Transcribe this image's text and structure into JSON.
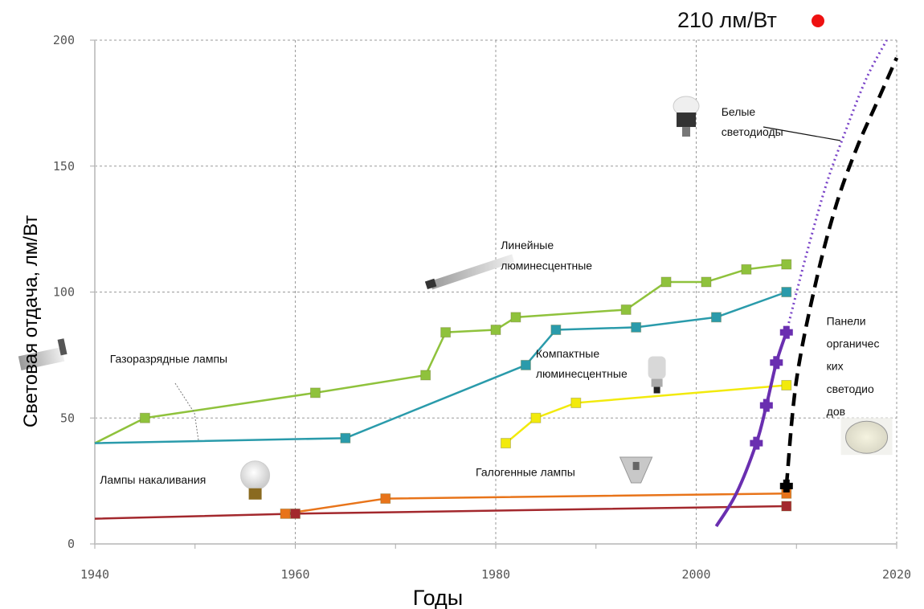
{
  "chart_data": {
    "type": "line",
    "title": "",
    "top_annotation": "210 лм/Вт",
    "top_annotation_marker_color": "#ee1111",
    "xlabel": "Годы",
    "ylabel": "Световая отдача, лм/Вт",
    "xlim": [
      1940,
      2020
    ],
    "ylim": [
      0,
      200
    ],
    "x_ticks": [
      1940,
      1960,
      1980,
      2000,
      2020
    ],
    "x_tick_labels": [
      "1940",
      "1960",
      "1980",
      "2000",
      "2020"
    ],
    "y_ticks": [
      0,
      50,
      100,
      150,
      200
    ],
    "y_tick_labels": [
      "0",
      "50",
      "100",
      "150",
      "200"
    ],
    "grid": true,
    "legend": "none (inline annotations)",
    "series": [
      {
        "name": "Линейные люминесцентные",
        "color": "#8fc23c",
        "marker": "square",
        "style": "solid",
        "x": [
          1940,
          1945,
          1962,
          1973,
          1975,
          1980,
          1982,
          1993,
          1997,
          2001,
          2005,
          2009
        ],
        "y": [
          40,
          50,
          60,
          67,
          84,
          85,
          90,
          93,
          104,
          104,
          109,
          111
        ]
      },
      {
        "name": "Компактные люминесцентные",
        "color": "#2a9bab",
        "marker": "square",
        "style": "solid",
        "x": [
          1940,
          1965,
          1983,
          1986,
          1994,
          2002,
          2009
        ],
        "y": [
          40,
          42,
          71,
          85,
          86,
          90,
          100
        ]
      },
      {
        "name": "Галогенные лампы",
        "color": "#f2ea0c",
        "marker": "square",
        "style": "solid",
        "x": [
          1981,
          1984,
          1988,
          2009
        ],
        "y": [
          40,
          50,
          56,
          63
        ]
      },
      {
        "name": "Галогенные лампы (низ)",
        "color": "#e8741a",
        "marker": "square",
        "style": "solid",
        "x": [
          1959,
          1969,
          2009
        ],
        "y": [
          12,
          18,
          20
        ]
      },
      {
        "name": "Лампы накаливания",
        "color": "#a3282d",
        "marker": "square",
        "style": "solid",
        "x": [
          1940,
          1960,
          2009
        ],
        "y": [
          10,
          12,
          15
        ]
      },
      {
        "name": "Белые светодиоды",
        "color": "#6a2fb0",
        "marker": "plus",
        "style": "solid",
        "x": [
          2002,
          2004,
          2006,
          2007,
          2008,
          2009
        ],
        "y": [
          7,
          20,
          40,
          55,
          72,
          84
        ]
      },
      {
        "name": "Белые светодиоды (прогноз)",
        "color": "#7a44c8",
        "marker": "none",
        "style": "dotted",
        "x": [
          2009,
          2011,
          2013,
          2015,
          2017,
          2019
        ],
        "y": [
          84,
          115,
          143,
          165,
          185,
          200
        ]
      },
      {
        "name": "Панели органических светодиодов",
        "color": "#000000",
        "marker": "plus",
        "style": "dashed",
        "x": [
          2009,
          2010,
          2012,
          2014,
          2016,
          2018,
          2020
        ],
        "y": [
          23,
          65,
          105,
          135,
          157,
          175,
          193
        ]
      }
    ],
    "annotations": [
      {
        "text": "Газоразрядные лампы",
        "x": 1941.5,
        "y": 72
      },
      {
        "text": "Линейные",
        "x": 1980.5,
        "y": 117
      },
      {
        "text": "люминесцентные",
        "x": 1980.5,
        "y": 109
      },
      {
        "text": "Компактные",
        "x": 1984,
        "y": 74
      },
      {
        "text": "люминесцентные",
        "x": 1984,
        "y": 66
      },
      {
        "text": "Галогенные лампы",
        "x": 1978,
        "y": 27
      },
      {
        "text": "Лампы накаливания",
        "x": 1940.5,
        "y": 24
      },
      {
        "text": "Белые",
        "x": 2002.5,
        "y": 170
      },
      {
        "text": "светодиоды",
        "x": 2002.5,
        "y": 162
      },
      {
        "text": "Панели",
        "x": 2013,
        "y": 87
      },
      {
        "text": "органичес",
        "x": 2013,
        "y": 78
      },
      {
        "text": "ких",
        "x": 2013,
        "y": 69
      },
      {
        "text": "светодио",
        "x": 2013,
        "y": 60
      },
      {
        "text": "дов",
        "x": 2013,
        "y": 51
      }
    ],
    "icons": [
      {
        "name": "linear-fluorescent-tube-icon",
        "x": 1974,
        "y": 108
      },
      {
        "name": "discharge-lamp-icon",
        "x": 1932.5,
        "y": 72
      },
      {
        "name": "compact-fluorescent-lamp-icon",
        "x": 1996,
        "y": 70
      },
      {
        "name": "halogen-lamp-icon",
        "x": 1994,
        "y": 30
      },
      {
        "name": "incandescent-bulb-icon",
        "x": 1956,
        "y": 24
      },
      {
        "name": "led-bulb-icon",
        "x": 1999,
        "y": 170
      },
      {
        "name": "oled-panel-icon",
        "x": 2017,
        "y": 43
      }
    ]
  }
}
